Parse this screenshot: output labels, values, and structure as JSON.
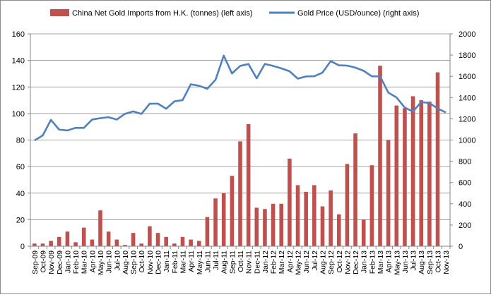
{
  "chart_data": {
    "type": "bar+line",
    "legend_position": "top",
    "grid": true,
    "categories": [
      "Sep-09",
      "Oct-09",
      "Nov-09",
      "Dec-09",
      "Jan-10",
      "Feb-10",
      "Mar-10",
      "Apr-10",
      "May-10",
      "Jun-10",
      "Jul-10",
      "Aug-10",
      "Sep-10",
      "Oct-10",
      "Nov-10",
      "Dec-10",
      "Jan-11",
      "Feb-11",
      "Mar-11",
      "Apr-11",
      "May-11",
      "Jun-11",
      "Jul-11",
      "Aug-11",
      "Sep-11",
      "Oct-11",
      "Nov-11",
      "Dec-11",
      "Jan-12",
      "Feb-12",
      "Mar-12",
      "Apr-12",
      "May-12",
      "Jun-12",
      "Jul-12",
      "Aug-12",
      "Sep-12",
      "Oct-12",
      "Nov-12",
      "Dec-12",
      "Jan-13",
      "Feb-13",
      "Mar-13",
      "Apr-13",
      "May-13",
      "Jun-13",
      "Jul-13",
      "Aug-13",
      "Sep-13",
      "Oct-13",
      "Nov-13"
    ],
    "left_axis": {
      "ylim": [
        0,
        160
      ],
      "ticks": [
        "0",
        "20",
        "40",
        "60",
        "80",
        "100",
        "120",
        "140",
        "160"
      ]
    },
    "right_axis": {
      "ylim": [
        0,
        2000
      ],
      "ticks": [
        "0",
        "200",
        "400",
        "600",
        "800",
        "1000",
        "1200",
        "1400",
        "1600",
        "1800",
        "2000"
      ]
    },
    "series": [
      {
        "name": "China Net Gold Imports from H.K. (tonnes) (left axis)",
        "type": "bar",
        "axis": "left",
        "color": "#c0504d",
        "values": [
          2,
          2,
          4,
          7,
          11,
          3,
          14,
          5,
          27,
          11,
          5,
          1,
          10,
          2,
          15,
          10,
          7,
          2,
          7,
          5,
          4,
          22,
          36,
          40,
          53,
          79,
          92,
          29,
          28,
          32,
          32,
          66,
          46,
          41,
          46,
          30,
          42,
          24,
          62,
          85,
          20,
          61,
          136,
          80,
          106,
          104,
          113,
          110,
          109,
          131,
          null
        ]
      },
      {
        "name": "Gold Price (USD/ounce) (right axis)",
        "type": "line",
        "axis": "right",
        "color": "#4f81bd",
        "values": [
          996,
          1043,
          1190,
          1098,
          1090,
          1115,
          1114,
          1193,
          1206,
          1215,
          1193,
          1247,
          1270,
          1246,
          1342,
          1343,
          1295,
          1364,
          1376,
          1525,
          1511,
          1483,
          1567,
          1795,
          1627,
          1698,
          1716,
          1581,
          1717,
          1698,
          1675,
          1648,
          1578,
          1599,
          1601,
          1635,
          1743,
          1704,
          1701,
          1682,
          1652,
          1600,
          1600,
          1447,
          1401,
          1305,
          1269,
          1358,
          1348,
          1297,
          1259
        ]
      }
    ]
  }
}
